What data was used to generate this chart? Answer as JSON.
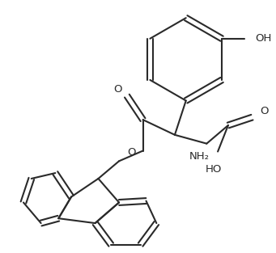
{
  "background_color": "#ffffff",
  "line_color": "#2a2a2a",
  "line_width": 1.5,
  "font_size": 9.5,
  "labels": {
    "OH_top": "OH",
    "O_carbonyl": "O",
    "O_ester": "O",
    "NH2": "NH₂",
    "O_acid": "O",
    "HO_acid": "HO"
  }
}
